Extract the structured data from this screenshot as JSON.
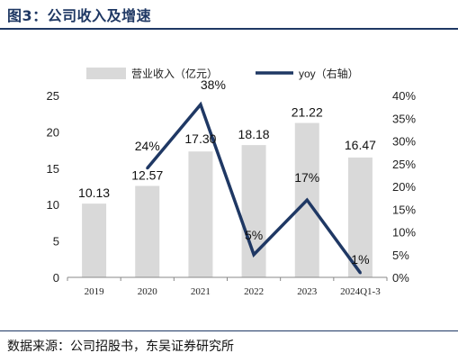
{
  "header": {
    "title": "图3：公司收入及增速"
  },
  "footer": {
    "source": "数据来源：公司招股书，东吴证券研究所"
  },
  "colors": {
    "bar": "#d9d9d9",
    "line": "#1f3864",
    "title": "#1f3864"
  },
  "chart_data": {
    "type": "bar",
    "title": "",
    "categories": [
      "2019",
      "2020",
      "2021",
      "2022",
      "2023",
      "2024Q1-3"
    ],
    "series": [
      {
        "name": "营业收入（亿元）",
        "type": "bar",
        "axis": "left",
        "values": [
          10.13,
          12.57,
          17.3,
          18.18,
          21.22,
          16.47
        ],
        "labels": [
          "10.13",
          "12.57",
          "17.30",
          "18.18",
          "21.22",
          "16.47"
        ]
      },
      {
        "name": "yoy（右轴）",
        "type": "line",
        "axis": "right",
        "values": [
          null,
          24,
          38,
          5,
          17,
          1
        ],
        "labels": [
          "",
          "24%",
          "38%",
          "5%",
          "17%",
          "1%"
        ]
      }
    ],
    "ylim_left": [
      0,
      25
    ],
    "yticks_left": [
      "0",
      "5",
      "10",
      "15",
      "20",
      "25"
    ],
    "ylim_right": [
      0,
      40
    ],
    "yticks_right": [
      "0%",
      "5%",
      "10%",
      "15%",
      "20%",
      "25%",
      "30%",
      "35%",
      "40%"
    ],
    "grid": false,
    "legend": "top"
  }
}
